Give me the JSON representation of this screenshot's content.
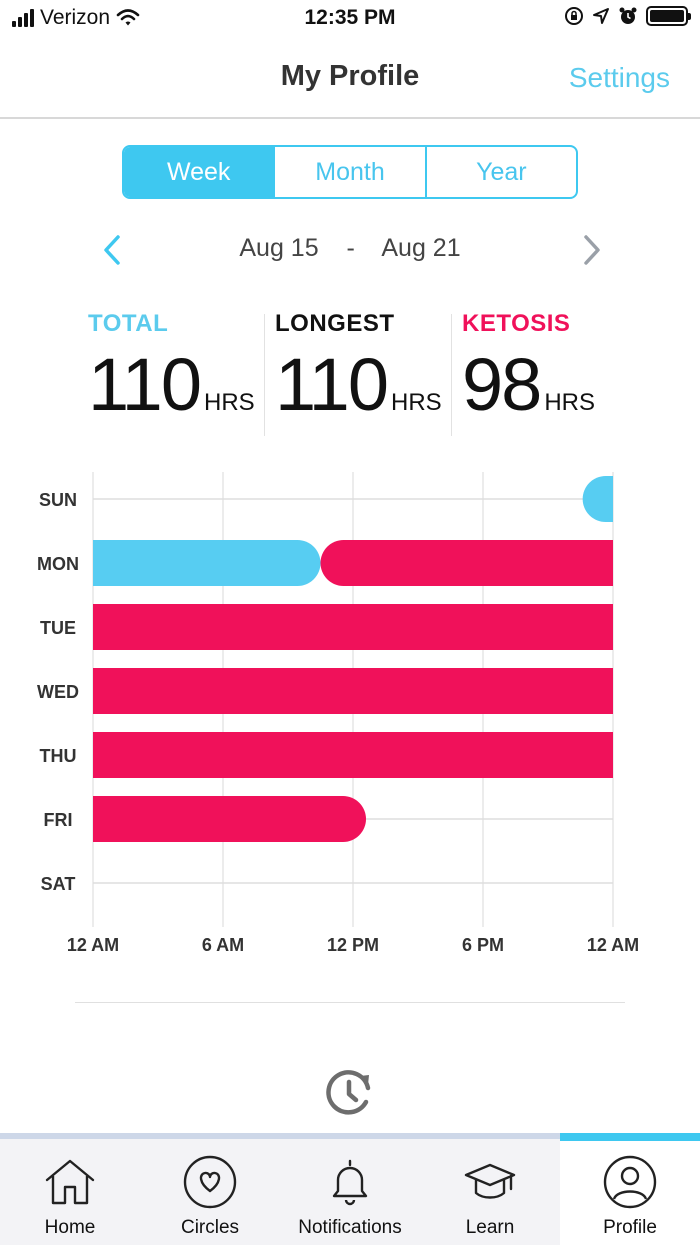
{
  "status_bar": {
    "carrier": "Verizon",
    "time": "12:35 PM"
  },
  "nav": {
    "title": "My Profile",
    "settings_label": "Settings"
  },
  "period_tabs": [
    {
      "label": "Week",
      "active": true
    },
    {
      "label": "Month",
      "active": false
    },
    {
      "label": "Year",
      "active": false
    }
  ],
  "date_range": {
    "start": "Aug 15",
    "separator": "-",
    "end": "Aug 21"
  },
  "stats": [
    {
      "label": "TOTAL",
      "value": "110",
      "unit": "HRS",
      "color": "#5bcbed"
    },
    {
      "label": "LONGEST",
      "value": "110",
      "unit": "HRS",
      "color": "#111111"
    },
    {
      "label": "KETOSIS",
      "value": "98",
      "unit": "HRS",
      "color": "#f0115a"
    }
  ],
  "chart_data": {
    "type": "bar",
    "orientation": "horizontal",
    "categories": [
      "SUN",
      "MON",
      "TUE",
      "WED",
      "THU",
      "FRI",
      "SAT"
    ],
    "x_ticks": [
      "12 AM",
      "6 AM",
      "12 PM",
      "6 PM",
      "12 AM"
    ],
    "x_range_hours": [
      0,
      24
    ],
    "fasting_color": "#57cdf2",
    "ketosis_color": "#f0115a",
    "segments": [
      {
        "day": "SUN",
        "start": 22.6,
        "end": 24,
        "type": "fasting"
      },
      {
        "day": "MON",
        "start": 0,
        "end": 10.5,
        "type": "fasting"
      },
      {
        "day": "MON",
        "start": 10.5,
        "end": 24,
        "type": "ketosis"
      },
      {
        "day": "TUE",
        "start": 0,
        "end": 24,
        "type": "ketosis"
      },
      {
        "day": "WED",
        "start": 0,
        "end": 24,
        "type": "ketosis"
      },
      {
        "day": "THU",
        "start": 0,
        "end": 24,
        "type": "ketosis"
      },
      {
        "day": "FRI",
        "start": 0,
        "end": 12.6,
        "type": "ketosis"
      }
    ]
  },
  "tabs": [
    {
      "label": "Home",
      "icon": "home-icon",
      "active": false
    },
    {
      "label": "Circles",
      "icon": "heart-circle-icon",
      "active": false
    },
    {
      "label": "Notifications",
      "icon": "bell-icon",
      "active": false
    },
    {
      "label": "Learn",
      "icon": "graduation-cap-icon",
      "active": false
    },
    {
      "label": "Profile",
      "icon": "user-icon",
      "active": true
    }
  ]
}
